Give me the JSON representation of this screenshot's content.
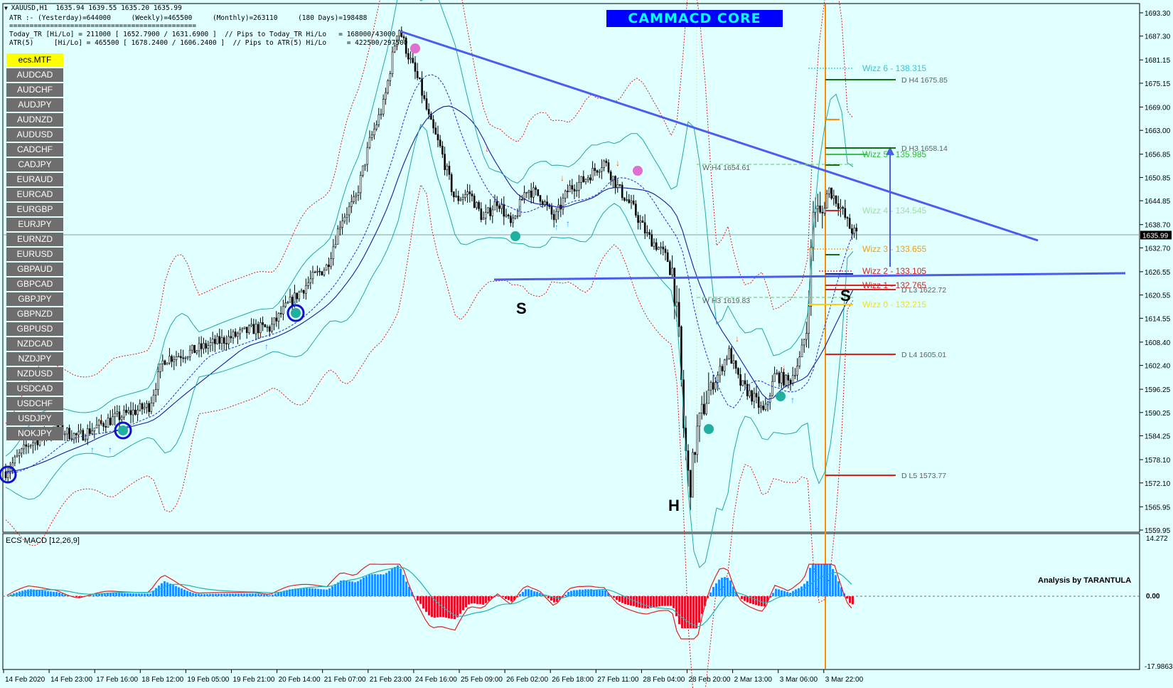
{
  "header": {
    "symbol_line": "XAUUSD,H1  1635.94 1639.55 1635.20 1635.99",
    "atr_line": "ATR :- (Yesterday)=644000     (Weekly)=465500     (Monthly)=263110     (180 Days)=198488",
    "separator": "==============================================",
    "today_tr_line": "Today_TR [Hi/Lo] = 211000 [ 1652.7900 / 1631.6900 ]  // Pips to Today_TR Hi/Lo   = 168000/43000",
    "atr5_line": "ATR(5)     [Hi/Lo] = 465500 [ 1678.2400 / 1606.2400 ]  // Pips to ATR(5) Hi/Lo     = 422500/297500"
  },
  "brand": "CAMMACD CORE",
  "symbols": [
    "ecs.MTF",
    "AUDCAD",
    "AUDCHF",
    "AUDJPY",
    "AUDNZD",
    "AUDUSD",
    "CADCHF",
    "CADJPY",
    "EURAUD",
    "EURCAD",
    "EURGBP",
    "EURJPY",
    "EURNZD",
    "EURUSD",
    "GBPAUD",
    "GBPCAD",
    "GBPJPY",
    "GBPNZD",
    "GBPUSD",
    "NZDCAD",
    "NZDJPY",
    "NZDUSD",
    "USDCAD",
    "USDCHF",
    "USDJPY",
    "NOKJPY"
  ],
  "price_axis": [
    "1693.30",
    "1687.30",
    "1681.15",
    "1675.15",
    "1669.00",
    "1663.00",
    "1656.85",
    "1650.85",
    "1644.85",
    "1638.70",
    "1632.70",
    "1626.55",
    "1620.55",
    "1614.55",
    "1608.40",
    "1602.40",
    "1596.25",
    "1590.25",
    "1584.25",
    "1578.10",
    "1572.10",
    "1565.95",
    "1559.95"
  ],
  "current_price": "1635.99",
  "macd_axis": {
    "top": "14.272",
    "zero": "0.00",
    "bottom": "-17.9863"
  },
  "time_axis": [
    "14 Feb 2020",
    "14 Feb 23:00",
    "17 Feb 16:00",
    "18 Feb 12:00",
    "19 Feb 05:00",
    "19 Feb 21:00",
    "20 Feb 14:00",
    "21 Feb 07:00",
    "21 Feb 23:00",
    "24 Feb 16:00",
    "25 Feb 09:00",
    "26 Feb 02:00",
    "26 Feb 18:00",
    "27 Feb 11:00",
    "28 Feb 04:00",
    "28 Feb 20:00",
    "2 Mar 13:00",
    "3 Mar 06:00",
    "3 Mar 22:00"
  ],
  "levels": {
    "wizz6": "Wizz 6 - 138.315",
    "wizz5": "Wizz 5 - 135.985",
    "wizz4": "Wizz 4 - 134.545",
    "wizz3": "Wizz 3 - 133.655",
    "wizz2": "Wizz 2 - 133.105",
    "wizz1": "Wizz 1 - 132.765",
    "wizz0": "Wizz 0 - 132.215",
    "dh4": "D  H4 1675.85",
    "dh3": "D  H3 1658.14",
    "wh4": "W  H4 1654.61",
    "dl3": "D  L3 1622.72",
    "wh3": "W  H3 1619.83",
    "dl4": "D  L4 1605.01",
    "dl5": "D  L5 1573.77"
  },
  "pattern_labels": {
    "left_shoulder": "S",
    "head": "H",
    "right_shoulder": "S"
  },
  "macd_title": "ECS MACD [12,26,9]",
  "analysis_credit": "Analysis by TARANTULA",
  "colors": {
    "background": "#e0ffff",
    "candle": "#000000",
    "trend_line": "#4b5cf0",
    "bollinger": "#20a8a8",
    "envelope": "#e02020",
    "ma": "#1a1aa0",
    "vline": "#ff8c00",
    "macd_pos": "#1e90ff",
    "macd_neg": "#e0102a"
  }
}
